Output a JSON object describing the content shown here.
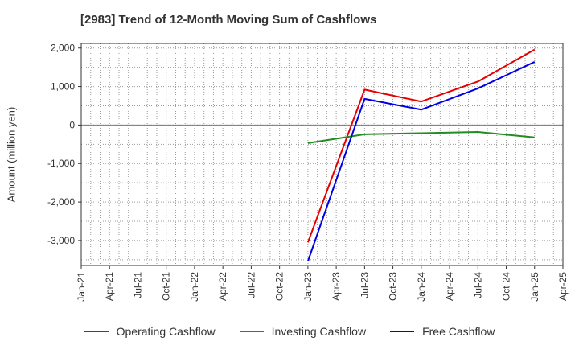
{
  "chart_data": {
    "type": "line",
    "title": "[2983]  Trend of 12-Month Moving Sum of Cashflows",
    "ylabel": "Amount (million yen)",
    "xlabel": "",
    "x_ticks": [
      "Jan-21",
      "Apr-21",
      "Jul-21",
      "Oct-21",
      "Jan-22",
      "Apr-22",
      "Jul-22",
      "Oct-22",
      "Jan-23",
      "Apr-23",
      "Jul-23",
      "Oct-23",
      "Jan-24",
      "Apr-24",
      "Jul-24",
      "Oct-24",
      "Jan-25",
      "Apr-25"
    ],
    "y_ticks": [
      2000,
      1000,
      0,
      -1000,
      -2000,
      -3000
    ],
    "y_tick_labels": [
      "2,000",
      "1,000",
      "0",
      "-1,000",
      "-2,000",
      "-3,000"
    ],
    "ylim": [
      -3650,
      2120
    ],
    "grid": true,
    "legend_position": "bottom",
    "x": [
      "Jan-23",
      "Jul-23",
      "Jan-24",
      "Jul-24",
      "Jan-25"
    ],
    "series": [
      {
        "name": "Operating Cashflow",
        "color": "#e60000",
        "values": [
          -3050,
          920,
          610,
          1130,
          1960
        ]
      },
      {
        "name": "Investing Cashflow",
        "color": "#228b22",
        "values": [
          -470,
          -240,
          -210,
          -180,
          -320
        ]
      },
      {
        "name": "Free Cashflow",
        "color": "#0000e6",
        "values": [
          -3540,
          680,
          400,
          950,
          1640
        ]
      }
    ]
  }
}
